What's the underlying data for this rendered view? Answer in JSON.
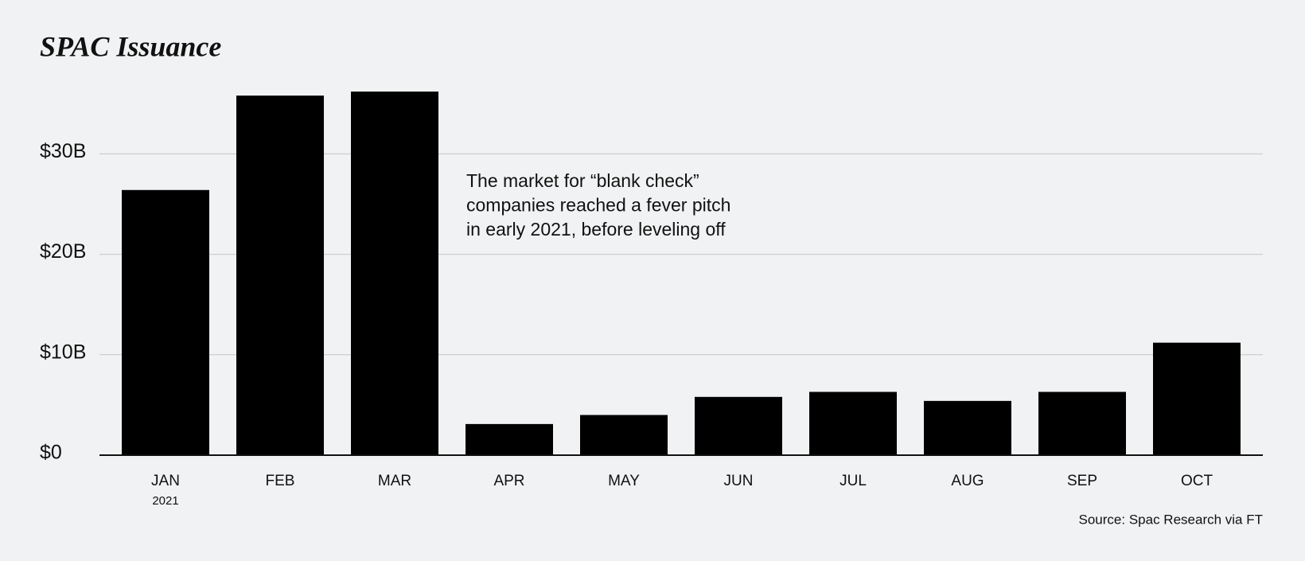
{
  "chart_data": {
    "type": "bar",
    "title": "SPAC Issuance",
    "categories": [
      "JAN",
      "FEB",
      "MAR",
      "APR",
      "MAY",
      "JUN",
      "JUL",
      "AUG",
      "SEP",
      "OCT"
    ],
    "category_sublabels": [
      "2021",
      null,
      null,
      null,
      null,
      null,
      null,
      null,
      null,
      null
    ],
    "values": [
      26.4,
      35.8,
      36.2,
      3.1,
      4.0,
      5.8,
      6.3,
      5.4,
      6.3,
      11.2
    ],
    "color": "#000000",
    "ylim": [
      0,
      37
    ],
    "yticks": [
      {
        "value": 0,
        "label": "$0"
      },
      {
        "value": 10,
        "label": "$10B"
      },
      {
        "value": 20,
        "label": "$20B"
      },
      {
        "value": 30,
        "label": "$30B"
      }
    ],
    "grid": true,
    "annotation": [
      "The market for “blank check”",
      "companies reached a fever pitch",
      "in early 2021, before leveling off"
    ],
    "source": "Source: Spac Research via FT"
  }
}
